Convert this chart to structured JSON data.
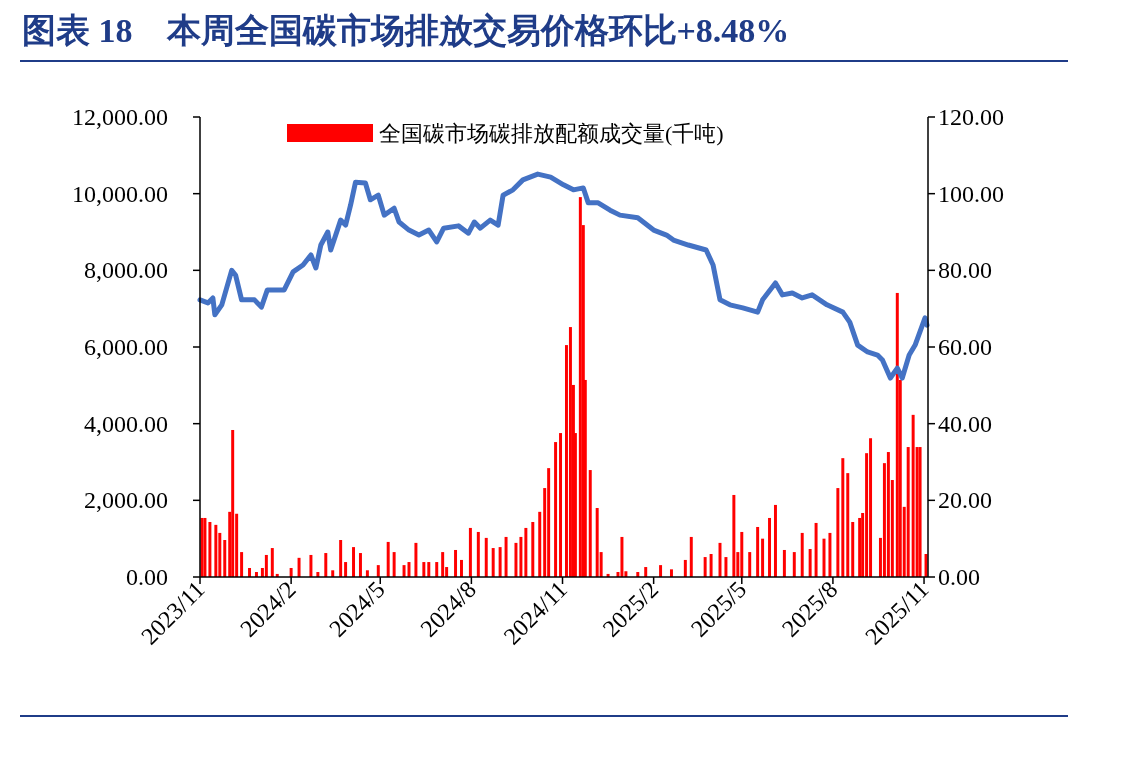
{
  "chart_data": {
    "type": "bar",
    "title": "图表 18　本周全国碳市场排放交易价格环比+8.48%",
    "xlim": [
      "2023-11-01",
      "2025-11-05"
    ],
    "xticks": [
      {
        "value": "2023-11-01",
        "label": "2023/11"
      },
      {
        "value": "2024-02-01",
        "label": "2024/2"
      },
      {
        "value": "2024-05-01",
        "label": "2024/5"
      },
      {
        "value": "2024-08-01",
        "label": "2024/8"
      },
      {
        "value": "2024-11-01",
        "label": "2024/11"
      },
      {
        "value": "2025-02-01",
        "label": "2025/2"
      },
      {
        "value": "2025-05-01",
        "label": "2025/5"
      },
      {
        "value": "2025-08-01",
        "label": "2025/8"
      },
      {
        "value": "2025-11-01",
        "label": "2025/11"
      }
    ],
    "ylim": [
      0,
      12000
    ],
    "yticks": [
      {
        "value": 0,
        "label": "0.00"
      },
      {
        "value": 2000,
        "label": "2,000.00"
      },
      {
        "value": 4000,
        "label": "4,000.00"
      },
      {
        "value": 6000,
        "label": "6,000.00"
      },
      {
        "value": 8000,
        "label": "8,000.00"
      },
      {
        "value": 10000,
        "label": "10,000.00"
      },
      {
        "value": 12000,
        "label": "12,000.00"
      }
    ],
    "y2lim": [
      0,
      120
    ],
    "y2ticks": [
      {
        "value": 0,
        "label": "0.00"
      },
      {
        "value": 20,
        "label": "20.00"
      },
      {
        "value": 40,
        "label": "40.00"
      },
      {
        "value": 60,
        "label": "60.00"
      },
      {
        "value": 80,
        "label": "80.00"
      },
      {
        "value": 100,
        "label": "100.00"
      },
      {
        "value": 120,
        "label": "120.00"
      }
    ],
    "grid": false,
    "legend": "top",
    "series": [
      {
        "name": "全国碳市场碳排放配额成交量(千吨)",
        "axis": "y",
        "color": "#ff0000",
        "x": [
          "2023-11-03",
          "2023-11-06",
          "2023-11-11",
          "2023-11-17",
          "2023-11-21",
          "2023-11-26",
          "2023-12-01",
          "2023-12-04",
          "2023-12-08",
          "2023-12-13",
          "2023-12-21",
          "2023-12-28",
          "2024-01-03",
          "2024-01-07",
          "2024-01-13",
          "2024-01-18",
          "2024-02-01",
          "2024-02-09",
          "2024-02-21",
          "2024-02-28",
          "2024-03-07",
          "2024-03-14",
          "2024-03-22",
          "2024-03-27",
          "2024-04-04",
          "2024-04-11",
          "2024-04-18",
          "2024-04-29",
          "2024-05-09",
          "2024-05-15",
          "2024-05-25",
          "2024-05-30",
          "2024-06-06",
          "2024-06-14",
          "2024-06-19",
          "2024-06-27",
          "2024-07-03",
          "2024-07-07",
          "2024-07-16",
          "2024-07-22",
          "2024-07-31",
          "2024-08-08",
          "2024-08-16",
          "2024-08-23",
          "2024-08-30",
          "2024-09-05",
          "2024-09-15",
          "2024-09-20",
          "2024-09-25",
          "2024-10-02",
          "2024-10-09",
          "2024-10-14",
          "2024-10-18",
          "2024-10-25",
          "2024-10-30",
          "2024-11-05",
          "2024-11-09",
          "2024-11-12",
          "2024-11-14",
          "2024-11-19",
          "2024-11-22",
          "2024-11-24",
          "2024-11-29",
          "2024-12-06",
          "2024-12-10",
          "2024-12-17",
          "2024-12-27",
          "2024-12-31",
          "2025-01-04",
          "2025-01-16",
          "2025-01-24",
          "2025-02-08",
          "2025-02-19",
          "2025-03-05",
          "2025-03-11",
          "2025-03-25",
          "2025-03-31",
          "2025-04-09",
          "2025-04-15",
          "2025-04-23",
          "2025-04-27",
          "2025-05-01",
          "2025-05-09",
          "2025-05-17",
          "2025-05-22",
          "2025-05-29",
          "2025-06-04",
          "2025-06-13",
          "2025-06-23",
          "2025-07-01",
          "2025-07-09",
          "2025-07-15",
          "2025-07-23",
          "2025-07-29",
          "2025-08-06",
          "2025-08-11",
          "2025-08-16",
          "2025-08-21",
          "2025-08-28",
          "2025-08-31",
          "2025-09-04",
          "2025-09-08",
          "2025-09-18",
          "2025-09-22",
          "2025-09-26",
          "2025-09-30",
          "2025-10-05",
          "2025-10-08",
          "2025-10-12",
          "2025-10-16",
          "2025-10-21",
          "2025-10-25",
          "2025-10-28",
          "2025-11-03"
        ],
        "values": [
          1540,
          1540,
          1435,
          1360,
          1150,
          965,
          1700,
          3835,
          1650,
          650,
          235,
          130,
          235,
          575,
          755,
          80,
          235,
          500,
          575,
          130,
          625,
          175,
          965,
          390,
          780,
          625,
          175,
          310,
          915,
          650,
          310,
          390,
          890,
          390,
          390,
          390,
          650,
          260,
          705,
          445,
          1280,
          1175,
          1020,
          755,
          780,
          1045,
          890,
          1045,
          1280,
          1435,
          1700,
          2320,
          2840,
          3520,
          3755,
          6050,
          6520,
          5010,
          3755,
          9910,
          9180,
          5140,
          2790,
          1800,
          650,
          80,
          130,
          1045,
          150,
          130,
          260,
          310,
          200,
          445,
          1045,
          520,
          600,
          890,
          520,
          2140,
          650,
          1175,
          650,
          1305,
          1000,
          1540,
          1880,
          705,
          650,
          1150,
          730,
          1410,
          1000,
          1150,
          2320,
          3100,
          2710,
          1435,
          1540,
          1670,
          3230,
          3620,
          1020,
          2970,
          3260,
          2530,
          7410,
          5140,
          1830,
          3390,
          4230,
          3390,
          3390,
          600
        ]
      },
      {
        "type": "line",
        "axis": "y2",
        "color": "#4472c4",
        "x": [
          "2023-11-01",
          "2023-11-09",
          "2023-11-14",
          "2023-11-16",
          "2023-11-23",
          "2023-12-03",
          "2023-12-07",
          "2023-12-13",
          "2023-12-26",
          "2024-01-02",
          "2024-01-08",
          "2024-01-25",
          "2024-02-03",
          "2024-02-13",
          "2024-02-21",
          "2024-02-26",
          "2024-03-02",
          "2024-03-09",
          "2024-03-12",
          "2024-03-22",
          "2024-03-27",
          "2024-04-01",
          "2024-04-06",
          "2024-04-16",
          "2024-04-21",
          "2024-04-29",
          "2024-05-05",
          "2024-05-15",
          "2024-05-20",
          "2024-05-30",
          "2024-06-09",
          "2024-06-19",
          "2024-06-27",
          "2024-07-04",
          "2024-07-19",
          "2024-07-29",
          "2024-08-04",
          "2024-08-10",
          "2024-08-20",
          "2024-08-28",
          "2024-09-02",
          "2024-09-12",
          "2024-09-22",
          "2024-10-07",
          "2024-10-20",
          "2024-11-02",
          "2024-11-12",
          "2024-11-22",
          "2024-11-27",
          "2024-12-07",
          "2024-12-19",
          "2024-12-29",
          "2025-01-16",
          "2025-02-01",
          "2025-02-14",
          "2025-02-21",
          "2025-03-08",
          "2025-03-26",
          "2025-04-02",
          "2025-04-09",
          "2025-04-19",
          "2025-05-02",
          "2025-05-17",
          "2025-05-22",
          "2025-06-04",
          "2025-06-11",
          "2025-06-21",
          "2025-07-01",
          "2025-07-11",
          "2025-07-26",
          "2025-08-11",
          "2025-08-18",
          "2025-08-26",
          "2025-09-05",
          "2025-09-15",
          "2025-09-20",
          "2025-09-28",
          "2025-10-05",
          "2025-10-10",
          "2025-10-17",
          "2025-10-23",
          "2025-11-02",
          "2025-11-04"
        ],
        "values": [
          72.3,
          71.5,
          72.8,
          68.4,
          71,
          80,
          78.7,
          72.3,
          72.3,
          70.4,
          74.9,
          74.9,
          79.6,
          81.4,
          84,
          80.6,
          86.6,
          90,
          85.3,
          93.1,
          91.8,
          97,
          103,
          102.8,
          98.4,
          99.6,
          94.4,
          96.2,
          92.6,
          90.5,
          89.2,
          90.5,
          87.4,
          91,
          91.6,
          89.7,
          92.6,
          91,
          93.1,
          91.8,
          99.6,
          101,
          103.6,
          105.1,
          104.3,
          102.3,
          101,
          101.5,
          97.6,
          97.6,
          95.7,
          94.4,
          93.7,
          90.5,
          89.2,
          87.9,
          86.6,
          85.3,
          81.4,
          72.3,
          71,
          70.2,
          69.1,
          72.3,
          76.7,
          73.6,
          74.1,
          72.8,
          73.6,
          71,
          69.1,
          66.5,
          60.5,
          58.7,
          57.9,
          56.6,
          51.9,
          54.5,
          51.9,
          57.9,
          60.5,
          67.6,
          65.7
        ]
      }
    ]
  }
}
